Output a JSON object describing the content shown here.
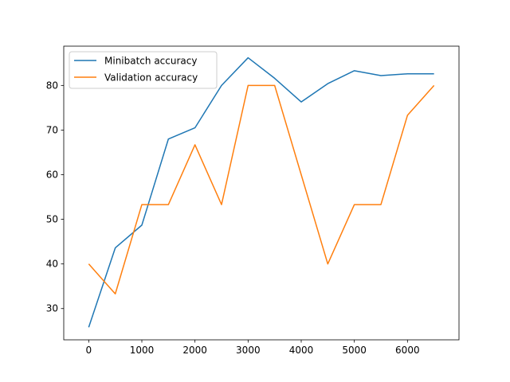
{
  "colors": {
    "background": "#ffffff",
    "axis": "#000000",
    "series_minibatch": "#1f77b4",
    "series_validation": "#ff7f0e"
  },
  "chart_data": {
    "type": "line",
    "title": "",
    "xlabel": "",
    "ylabel": "",
    "grid": false,
    "legend_position": "top-left",
    "xlim": [
      -470,
      6970
    ],
    "ylim": [
      23,
      88.8
    ],
    "xticks": [
      0,
      1000,
      2000,
      3000,
      4000,
      5000,
      6000
    ],
    "yticks": [
      30,
      40,
      50,
      60,
      70,
      80
    ],
    "x": [
      0,
      500,
      1000,
      1500,
      2000,
      2500,
      3000,
      3500,
      4000,
      4500,
      5000,
      5500,
      6000,
      6500
    ],
    "series": [
      {
        "name": "Minibatch accuracy",
        "color": "#1f77b4",
        "values": [
          25.8,
          43.6,
          48.7,
          68.0,
          70.5,
          80.0,
          86.2,
          81.6,
          76.3,
          80.4,
          83.3,
          82.2,
          82.6,
          82.6
        ]
      },
      {
        "name": "Validation accuracy",
        "color": "#ff7f0e",
        "values": [
          40.0,
          33.3,
          53.3,
          53.3,
          66.7,
          53.3,
          80.0,
          80.0,
          60.0,
          40.0,
          53.3,
          53.3,
          73.3,
          80.0
        ]
      }
    ]
  }
}
